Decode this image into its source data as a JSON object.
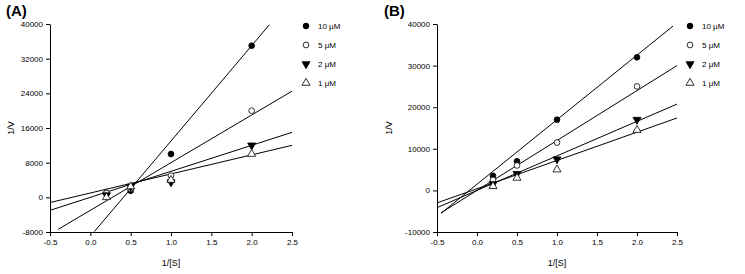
{
  "chart_data": [
    {
      "type": "scatter",
      "title": "(A)",
      "x_label": "1/[S]",
      "y_label": "1/V",
      "xlim": [
        -0.5,
        2.5
      ],
      "xticks": [
        -0.5,
        {
          "value": 0,
          "label": "0.0"
        },
        0.5,
        {
          "value": 1,
          "label": "1.0"
        },
        1.5,
        {
          "value": 2,
          "label": "2.0"
        },
        2.5
      ],
      "ylim": [
        -8000,
        40000
      ],
      "yticks": [
        -8000,
        0,
        8000,
        16000,
        24000,
        32000,
        40000
      ],
      "legend": "right",
      "x": [
        0.2,
        0.5,
        1.0,
        2.0
      ],
      "series": [
        {
          "name": "10 μM",
          "color": "#000000",
          "marker": "filled-circle",
          "values": [
            1000,
            1500,
            10000,
            35000
          ],
          "line_x": [
            0.05,
            2.22
          ],
          "line_y": [
            -7900,
            39840
          ]
        },
        {
          "name": "5 μM",
          "color": "#000000",
          "marker": "open-circle",
          "values": [
            1000,
            2000,
            5000,
            20000
          ],
          "line_x": [
            -0.4,
            2.5
          ],
          "line_y": [
            -7400,
            24500
          ]
        },
        {
          "name": "2 μM",
          "color": "#000000",
          "marker": "filled-triangle-down",
          "values": [
            500,
            2500,
            3500,
            12000
          ],
          "line_x": [
            -0.5,
            2.5
          ],
          "line_y": [
            -3000,
            15000
          ]
        },
        {
          "name": "1 μM",
          "color": "#000000",
          "marker": "open-triangle-up",
          "values": [
            0,
            2500,
            4000,
            10000
          ],
          "line_x": [
            -0.5,
            2.5
          ],
          "line_y": [
            -1200,
            12000
          ]
        }
      ]
    },
    {
      "type": "scatter",
      "title": "(B)",
      "x_label": "1/[S]",
      "y_label": "1/V",
      "xlim": [
        -0.5,
        2.5
      ],
      "xticks": [
        -0.5,
        {
          "value": 0,
          "label": "0.0"
        },
        0.5,
        {
          "value": 1,
          "label": "1.0"
        },
        1.5,
        {
          "value": 2,
          "label": "2.0"
        },
        2.5
      ],
      "ylim": [
        -10000,
        40000
      ],
      "yticks": [
        -10000,
        0,
        10000,
        20000,
        30000,
        40000
      ],
      "legend": "right",
      "x": [
        0.2,
        0.5,
        1.0,
        2.0
      ],
      "series": [
        {
          "name": "10 μM",
          "color": "#000000",
          "marker": "filled-circle",
          "values": [
            3500,
            7000,
            17000,
            32000
          ],
          "line_x": [
            -0.45,
            2.45
          ],
          "line_y": [
            -5500,
            39500
          ]
        },
        {
          "name": "5 μM",
          "color": "#000000",
          "marker": "open-circle",
          "values": [
            2500,
            6000,
            11500,
            25000
          ],
          "line_x": [
            -0.45,
            2.5
          ],
          "line_y": [
            -5400,
            30000
          ]
        },
        {
          "name": "2 μM",
          "color": "#000000",
          "marker": "filled-triangle-down",
          "values": [
            1500,
            4000,
            7500,
            17000
          ],
          "line_x": [
            -0.5,
            2.5
          ],
          "line_y": [
            -4150,
            20750
          ]
        },
        {
          "name": "1 μM",
          "color": "#000000",
          "marker": "open-triangle-up",
          "values": [
            1000,
            3000,
            5000,
            14500
          ],
          "line_x": [
            -0.5,
            2.5
          ],
          "line_y": [
            -3000,
            17400
          ]
        }
      ]
    }
  ]
}
